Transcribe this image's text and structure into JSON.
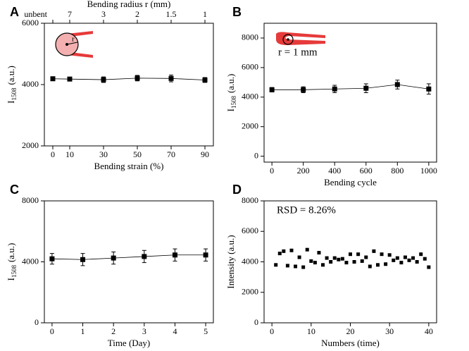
{
  "chart_data": [
    {
      "type": "line",
      "panel_label": "A",
      "color": "#000000",
      "xlabel": "Bending strain (%)",
      "ylabel": {
        "text": "I",
        "subscript": "1508",
        "unit": "(a.u.)"
      },
      "x2label": "Bending radius r (mm)",
      "inset_label": "r",
      "x": [
        0,
        10,
        30,
        50,
        70,
        90
      ],
      "values": [
        4190,
        4180,
        4160,
        4210,
        4200,
        4150
      ],
      "errors": [
        50,
        50,
        90,
        90,
        110,
        80
      ],
      "xlim": [
        -5,
        95
      ],
      "xticks": [
        0,
        10,
        30,
        50,
        70,
        90
      ],
      "x2ticks": [
        {
          "value": 0,
          "label": "unbent"
        },
        {
          "value": 10,
          "label": "7"
        },
        {
          "value": 30,
          "label": "3"
        },
        {
          "value": 50,
          "label": "2"
        },
        {
          "value": 70,
          "label": "1.5"
        },
        {
          "value": 90,
          "label": "1"
        }
      ],
      "ylim": [
        2000,
        6000
      ],
      "yticks": [
        2000,
        4000,
        6000
      ]
    },
    {
      "type": "line",
      "panel_label": "B",
      "color": "#000000",
      "xlabel": "Bending cycle",
      "ylabel": {
        "text": "I",
        "subscript": "1508",
        "unit": "(a.u.)"
      },
      "annotation": "r = 1 mm",
      "x": [
        0,
        200,
        400,
        600,
        800,
        1000
      ],
      "values": [
        4500,
        4500,
        4550,
        4600,
        4850,
        4550
      ],
      "errors": [
        150,
        200,
        250,
        300,
        300,
        350
      ],
      "xlim": [
        -50,
        1050
      ],
      "xticks": [
        0,
        200,
        400,
        600,
        800,
        1000
      ],
      "ylim": [
        -400,
        9000
      ],
      "yticks": [
        0,
        2000,
        4000,
        6000,
        8000
      ]
    },
    {
      "type": "line",
      "panel_label": "C",
      "color": "#000000",
      "xlabel": "Time (Day)",
      "ylabel": {
        "text": "I",
        "subscript": "1508",
        "unit": "(a.u.)"
      },
      "x": [
        0,
        1,
        2,
        3,
        4,
        5
      ],
      "values": [
        4200,
        4150,
        4250,
        4350,
        4450,
        4450
      ],
      "errors": [
        350,
        400,
        400,
        400,
        400,
        400
      ],
      "xlim": [
        -0.25,
        5.25
      ],
      "xticks": [
        0,
        1,
        2,
        3,
        4,
        5
      ],
      "ylim": [
        0,
        8000
      ],
      "yticks": [
        0,
        4000,
        8000
      ]
    },
    {
      "type": "scatter",
      "panel_label": "D",
      "color": "#000000",
      "xlabel": "Numbers (time)",
      "ylabel": "Intensity (a.u.)",
      "annotation": "RSD = 8.26%",
      "x": [
        1,
        2,
        3,
        4,
        5,
        6,
        7,
        8,
        9,
        10,
        11,
        12,
        13,
        14,
        15,
        16,
        17,
        18,
        19,
        20,
        21,
        22,
        23,
        24,
        25,
        26,
        27,
        28,
        29,
        30,
        31,
        32,
        33,
        34,
        35,
        36,
        37,
        38,
        39,
        40
      ],
      "values": [
        3800,
        4550,
        4700,
        3750,
        4750,
        3700,
        4300,
        3650,
        4800,
        4050,
        3950,
        4600,
        3800,
        4250,
        4000,
        4250,
        4150,
        4200,
        3950,
        4500,
        4000,
        4500,
        4050,
        4300,
        3700,
        4700,
        3800,
        4500,
        3850,
        4450,
        4100,
        4250,
        3950,
        4300,
        4100,
        4250,
        4000,
        4500,
        4200,
        3650
      ],
      "xlim": [
        -2,
        42
      ],
      "xticks": [
        0,
        10,
        20,
        30,
        40
      ],
      "ylim": [
        0,
        8000
      ],
      "yticks": [
        0,
        2000,
        4000,
        6000,
        8000
      ]
    }
  ]
}
